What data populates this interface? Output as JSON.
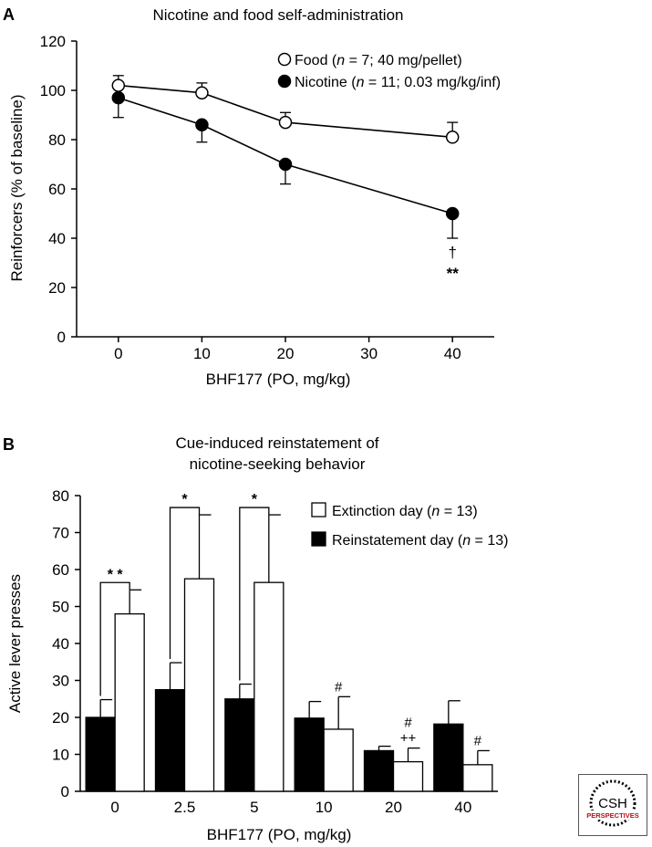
{
  "chart_data": [
    {
      "type": "line",
      "panel_label": "A",
      "title": "Nicotine and food self-administration",
      "xlabel": "BHF177 (PO, mg/kg)",
      "ylabel": "Reinforcers (% of baseline)",
      "xlim": [
        -5,
        45
      ],
      "ylim": [
        0,
        120
      ],
      "xticks": [
        "0",
        "10",
        "20",
        "30",
        "40"
      ],
      "yticks": [
        "0",
        "20",
        "40",
        "60",
        "80",
        "100",
        "120"
      ],
      "series": [
        {
          "name": "Food",
          "legend_prefix": "Food (",
          "legend_n": "n",
          "legend_suffix": " = 7; 40 mg/pellet)",
          "marker": "open-circle",
          "x": [
            0,
            10,
            20,
            40
          ],
          "y": [
            102,
            99,
            87,
            81
          ],
          "err": [
            4,
            4,
            4,
            6
          ]
        },
        {
          "name": "Nicotine",
          "legend_prefix": "Nicotine (",
          "legend_n": "n",
          "legend_suffix": " = 11; 0.03 mg/kg/inf)",
          "marker": "filled-circle",
          "x": [
            0,
            10,
            20,
            40
          ],
          "y": [
            97,
            86,
            70,
            50
          ],
          "err": [
            8,
            7,
            8,
            10
          ]
        }
      ],
      "annotations": [
        {
          "text": "†",
          "x": 40
        },
        {
          "text": "**",
          "x": 40
        }
      ]
    },
    {
      "type": "bar",
      "panel_label": "B",
      "title_lines": [
        "Cue-induced reinstatement of",
        "nicotine-seeking behavior"
      ],
      "xlabel": "BHF177 (PO, mg/kg)",
      "ylabel": "Active lever presses",
      "ylim": [
        0,
        80
      ],
      "yticks": [
        "0",
        "10",
        "20",
        "30",
        "40",
        "50",
        "60",
        "70",
        "80"
      ],
      "categories": [
        "0",
        "2.5",
        "5",
        "10",
        "20",
        "40"
      ],
      "series": [
        {
          "name": "Reinstatement day",
          "legend_prefix": "Reinstatement day (",
          "legend_n": "n",
          "legend_suffix": " = 13)",
          "color": "#000000",
          "values": [
            20,
            27.5,
            25,
            19.8,
            11,
            18.2
          ],
          "err": [
            4.8,
            7.3,
            4,
            4.5,
            1.2,
            6.3
          ]
        },
        {
          "name": "Extinction day",
          "legend_prefix": "Extinction day (",
          "legend_n": "n",
          "legend_suffix": " = 13)",
          "color": "#ffffff",
          "values": [
            48,
            57.5,
            56.5,
            16.8,
            8,
            7.2
          ],
          "err": [
            6.5,
            17.3,
            18.3,
            8.8,
            3.7,
            3.8
          ]
        }
      ],
      "brackets": [
        {
          "category": 0,
          "text": "* *"
        },
        {
          "category": 1,
          "text": "*"
        },
        {
          "category": 2,
          "text": "*"
        }
      ],
      "bar_annotations": [
        {
          "category": 3,
          "series": 1,
          "lines": [
            "#"
          ]
        },
        {
          "category": 4,
          "series": 1,
          "lines": [
            "#",
            "++"
          ]
        },
        {
          "category": 5,
          "series": 1,
          "lines": [
            "#"
          ]
        }
      ]
    }
  ],
  "logo": {
    "line1": "CSH",
    "line2": "PERSPECTIVES"
  }
}
